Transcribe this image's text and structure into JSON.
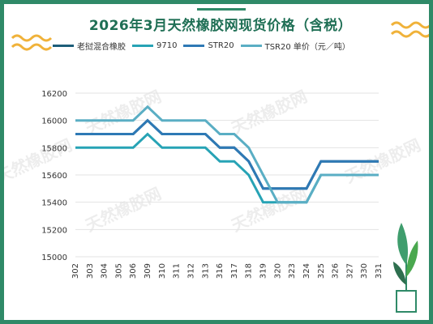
{
  "chart_data": {
    "type": "line",
    "title": "2026年3月天然橡胶网现货价格（含税）",
    "categories": [
      "302",
      "303",
      "304",
      "305",
      "306",
      "309",
      "310",
      "311",
      "312",
      "313",
      "316",
      "317",
      "318",
      "319",
      "320",
      "323",
      "324",
      "325",
      "326",
      "327",
      "330",
      "331"
    ],
    "ylim": [
      15000,
      16200
    ],
    "yticks": [
      15000,
      15200,
      15400,
      15600,
      15800,
      16000,
      16200
    ],
    "grid": true,
    "legend": "top",
    "series": [
      {
        "name": "老挝混合橡胶",
        "color": "#1d5d79",
        "values": [
          15900,
          15900,
          15900,
          15900,
          15900,
          16000,
          15900,
          15900,
          15900,
          15900,
          15800,
          15800,
          15700,
          15500,
          15500,
          15500,
          15500,
          15700,
          15700,
          15700,
          15700,
          15700
        ]
      },
      {
        "name": "9710",
        "color": "#27a3b5",
        "values": [
          15800,
          15800,
          15800,
          15800,
          15800,
          15900,
          15800,
          15800,
          15800,
          15800,
          15700,
          15700,
          15600,
          15400,
          15400,
          15400,
          15400,
          15600,
          15600,
          15600,
          15600,
          15600
        ]
      },
      {
        "name": "STR20",
        "color": "#2e79b5",
        "values": [
          15900,
          15900,
          15900,
          15900,
          15900,
          16000,
          15900,
          15900,
          15900,
          15900,
          15800,
          15800,
          15700,
          15500,
          15500,
          15500,
          15500,
          15700,
          15700,
          15700,
          15700,
          15700
        ]
      },
      {
        "name": "TSR20 单价（元／吨）",
        "color": "#5aaec4",
        "values": [
          16000,
          16000,
          16000,
          16000,
          16000,
          16100,
          16000,
          16000,
          16000,
          16000,
          15900,
          15900,
          15800,
          15600,
          15400,
          15400,
          15400,
          15600,
          15600,
          15600,
          15600,
          15600
        ]
      }
    ]
  },
  "watermarks": [
    "天然橡胶网",
    "天然橡胶网",
    "天然橡胶网",
    "天然橡胶网",
    "天然橡胶网",
    "天然橡胶网"
  ]
}
